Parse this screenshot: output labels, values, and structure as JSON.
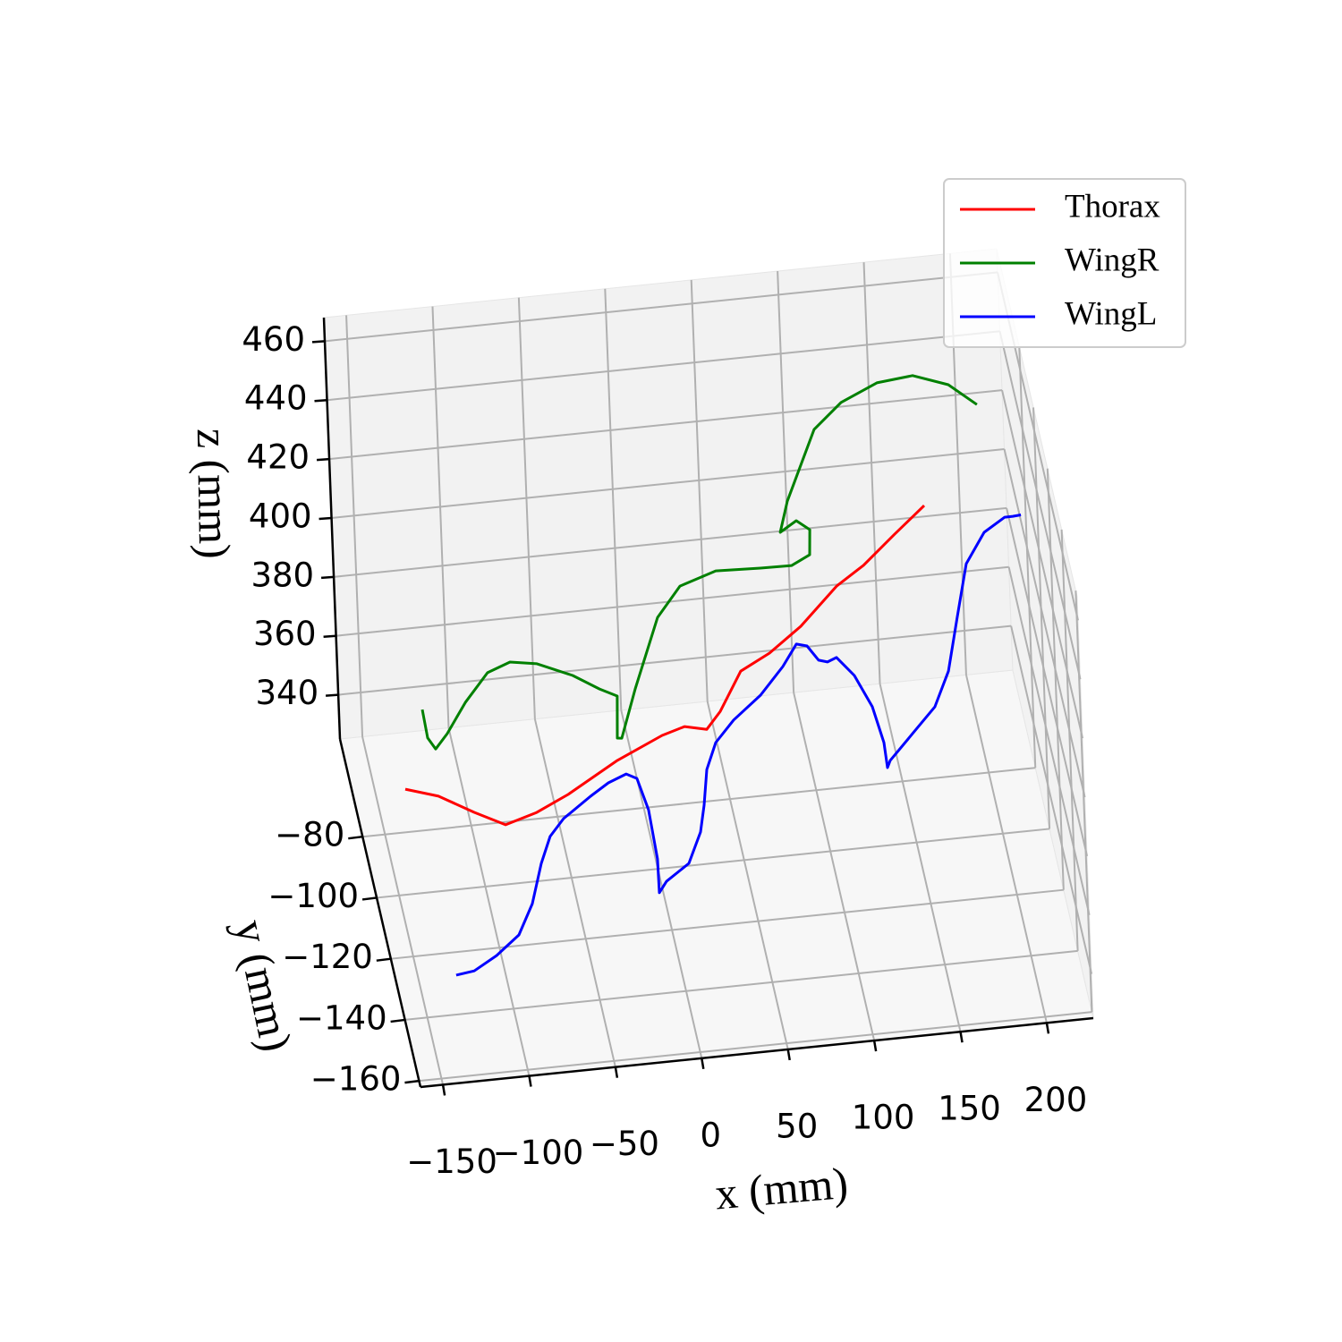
{
  "chart_data": {
    "type": "line3d",
    "xlabel": "x (mm)",
    "ylabel": "y (mm)",
    "zlabel": "z (mm)",
    "xlim": [
      -163,
      227
    ],
    "ylim": [
      -162,
      -48
    ],
    "zlim": [
      325,
      468
    ],
    "xticks": [
      {
        "value": -150,
        "label": "−150"
      },
      {
        "value": -100,
        "label": "−100"
      },
      {
        "value": -50,
        "label": "−50"
      },
      0,
      50,
      100,
      150,
      200
    ],
    "yticks": [
      {
        "value": -160,
        "label": "−160"
      },
      {
        "value": -140,
        "label": "−140"
      },
      {
        "value": -120,
        "label": "−120"
      },
      {
        "value": -100,
        "label": "−100"
      },
      {
        "value": -80,
        "label": "−80"
      }
    ],
    "zticks": [
      340,
      360,
      380,
      400,
      420,
      440,
      460
    ],
    "grid": true,
    "legend": "upper right",
    "series": [
      {
        "name": "Thorax",
        "color": "#ff0000",
        "x": [
          -144.1,
          -125.1,
          -104.8,
          -87.0,
          -68.7,
          -50.2,
          -21.0,
          5.4,
          18.5,
          31.3,
          39.5,
          52.2,
          69.2,
          87.9,
          109.4,
          125.4,
          144.1,
          161.8
        ],
        "y": [
          -100,
          -100,
          -100,
          -100,
          -100,
          -100,
          -100,
          -100,
          -100,
          -100,
          -100,
          -100,
          -100,
          -100,
          -100,
          -100,
          -100,
          -100
        ],
        "z": [
          360.7,
          357.2,
          350.5,
          345.2,
          348.3,
          353.3,
          363.1,
          370.0,
          372.2,
          370.5,
          376.1,
          389.0,
          394.1,
          402.1,
          414.4,
          420.5,
          430.0,
          438.6
        ]
      },
      {
        "name": "WingR",
        "color": "#008000",
        "x": [
          -122.6,
          -120.1,
          -115.7,
          -108.7,
          -97.6,
          -84.1,
          -70.9,
          -55.4,
          -35.0,
          -19.8,
          -9.7,
          -10.6,
          -8.0,
          0.8,
          15.3,
          28.9,
          49.9,
          75.8,
          93.9,
          104.5,
          105.1,
          97.5,
          88.0,
          92.8,
          109.8,
          126.0,
          147.1,
          167.9,
          188.3,
          204.4
        ],
        "y": [
          -70.8,
          -70.8,
          -70.8,
          -70.8,
          -70.8,
          -70.8,
          -70.8,
          -70.8,
          -70.8,
          -70.8,
          -70.8,
          -70.8,
          -70.8,
          -70.8,
          -70.8,
          -70.8,
          -70.8,
          -70.8,
          -70.8,
          -70.8,
          -70.8,
          -70.8,
          -70.8,
          -70.8,
          -70.8,
          -70.8,
          -70.8,
          -70.8,
          -70.8,
          -70.8
        ],
        "z": [
          356.2,
          346.4,
          342.4,
          347.2,
          357.1,
          366.4,
          369.2,
          367.7,
          362.5,
          357.0,
          354.0,
          339.8,
          339.6,
          355.8,
          379.2,
          389.0,
          392.9,
          392.3,
          392.1,
          395.1,
          403.6,
          407.1,
          403.7,
          414.0,
          437.3,
          445.5,
          450.9,
          452.1,
          447.8,
          440.1
        ]
      },
      {
        "name": "WingL",
        "color": "#0000ff",
        "x": [
          -130.2,
          -119.7,
          -106.5,
          -93.1,
          -84.7,
          -78.6,
          -72.9,
          -64.7,
          -48.7,
          -38.1,
          -27.6,
          -21.5,
          -15.5,
          -11.4,
          -11.1,
          -6.7,
          6.6,
          14.0,
          16.7,
          19.0,
          24.8,
          35.6,
          51.7,
          65.2,
          73.5,
          79.6,
          86.0,
          91.1,
          96.4,
          106.3,
          116.0,
          121.9,
          123.4,
          125.1,
          138.6,
          152.1,
          160.7,
          167.0,
          173.4,
          184.4,
          196.6,
          201.3,
          206.0
        ],
        "y": [
          -133.5,
          -133.5,
          -133.5,
          -133.5,
          -133.5,
          -133.5,
          -133.5,
          -133.5,
          -133.5,
          -133.5,
          -133.5,
          -133.5,
          -133.5,
          -133.5,
          -133.5,
          -133.5,
          -133.5,
          -133.5,
          -133.5,
          -133.5,
          -133.5,
          -133.5,
          -133.5,
          -133.5,
          -133.5,
          -133.5,
          -133.5,
          -133.5,
          -133.5,
          -133.5,
          -133.5,
          -133.5,
          -133.5,
          -133.5,
          -133.5,
          -133.5,
          -133.5,
          -133.5,
          -133.5,
          -133.5,
          -133.5,
          -133.5,
          -133.5
        ],
        "z": [
          331.5,
          332.3,
          336.7,
          342.9,
          353.0,
          366.3,
          375.1,
          380.7,
          387.3,
          391.2,
          393.6,
          391.7,
          380.7,
          363.8,
          352.3,
          355.9,
          361.2,
          371.4,
          380.3,
          392.3,
          401.1,
          408.1,
          415.6,
          424.5,
          431.6,
          430.6,
          425.4,
          424.5,
          425.7,
          419.0,
          407.8,
          395.3,
          386.7,
          389.0,
          397.3,
          405.6,
          417.2,
          435.1,
          452.9,
          462.9,
          467.3,
          467.3,
          467.5
        ]
      }
    ]
  }
}
